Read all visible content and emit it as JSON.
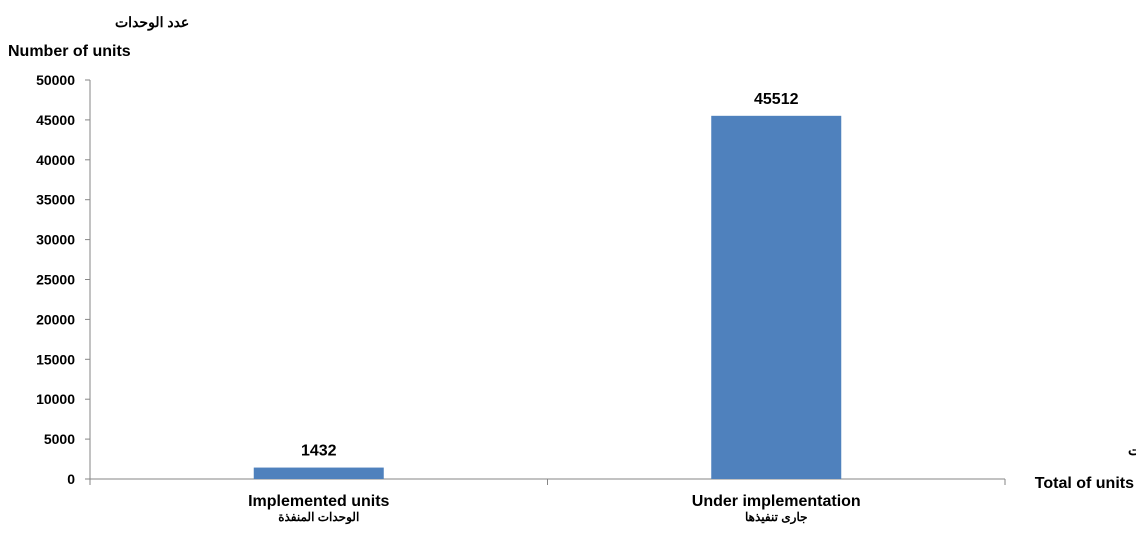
{
  "chart_data": {
    "type": "bar",
    "categories": [
      "Implemented units",
      "Under implementation"
    ],
    "categories_ar": [
      "الوحدات المنفذة",
      "جارى تنفيذها"
    ],
    "values": [
      1432,
      45512
    ],
    "data_labels": [
      "1432",
      "45512"
    ],
    "ylabel_ar": "عدد الوحدات",
    "ylabel": "Number of units",
    "xlabel_ar": "اجمالي الوحدات",
    "xlabel": "Total of units",
    "ylim": [
      0,
      50000
    ],
    "ytick_values": [
      0,
      5000,
      10000,
      15000,
      20000,
      25000,
      30000,
      35000,
      40000,
      45000,
      50000
    ],
    "ytick_labels": [
      "0",
      "5000",
      "10000",
      "15000",
      "20000",
      "25000",
      "30000",
      "35000",
      "40000",
      "45000",
      "50000"
    ],
    "bar_color": "#4f81bd",
    "axis_color": "#868686",
    "grid": false,
    "legend": "none"
  }
}
